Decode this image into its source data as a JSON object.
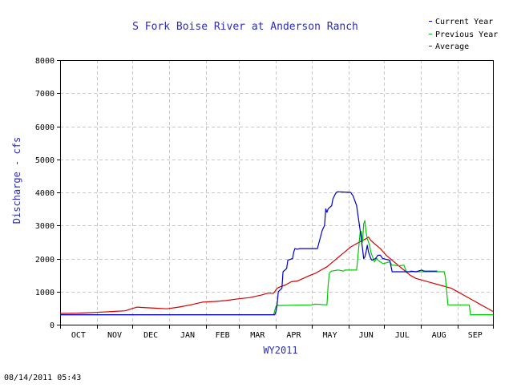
{
  "chart_data": {
    "type": "line",
    "title": "S Fork Boise River at Anderson Ranch",
    "xlabel": "WY2011",
    "ylabel": "Discharge - cfs",
    "ylim": [
      0,
      8000
    ],
    "yticks": [
      0,
      1000,
      2000,
      3000,
      4000,
      5000,
      6000,
      7000,
      8000
    ],
    "xlim": [
      0,
      365
    ],
    "month_labels": [
      "OCT",
      "NOV",
      "DEC",
      "JAN",
      "FEB",
      "MAR",
      "APR",
      "MAY",
      "JUN",
      "JUL",
      "AUG",
      "SEP"
    ],
    "grid": true,
    "legend_position": "top-right",
    "series": [
      {
        "name": "Current Year",
        "color": "#0000c8",
        "x": [
          0,
          181,
          182,
          183,
          184,
          187,
          188,
          191,
          192,
          196,
          197,
          198,
          200,
          202,
          205,
          207,
          217,
          221,
          223,
          224,
          225,
          226,
          229,
          230,
          232,
          233,
          234,
          240,
          245,
          246,
          247,
          250,
          254,
          256,
          257,
          258,
          259,
          260,
          262,
          263,
          266,
          268,
          270,
          272,
          278,
          280,
          295,
          296,
          300,
          305,
          307,
          318
        ],
        "values": [
          300,
          300,
          400,
          600,
          1000,
          1100,
          1600,
          1700,
          1950,
          2000,
          2200,
          2300,
          2280,
          2300,
          2300,
          2300,
          2300,
          2850,
          3000,
          3500,
          3400,
          3500,
          3600,
          3800,
          3950,
          4000,
          4020,
          4010,
          4000,
          3950,
          3900,
          3600,
          2600,
          2000,
          2050,
          2200,
          2400,
          2200,
          2000,
          1950,
          2000,
          2100,
          2100,
          2000,
          1950,
          1600,
          1600,
          1620,
          1600,
          1650,
          1620,
          1620
        ]
      },
      {
        "name": "Previous Year",
        "color": "#00c800",
        "x": [
          0,
          180,
          182,
          183,
          184,
          212,
          215,
          225,
          226,
          227,
          228,
          229,
          234,
          235,
          239,
          240,
          250,
          251,
          253,
          254,
          255,
          256,
          257,
          258,
          259,
          260,
          261,
          262,
          263,
          264,
          265,
          266,
          267,
          268,
          270,
          272,
          273,
          278,
          280,
          282,
          285,
          290,
          292,
          300,
          312,
          324,
          325,
          326,
          327,
          340,
          345,
          346,
          355,
          365
        ],
        "values": [
          300,
          300,
          550,
          600,
          580,
          600,
          620,
          600,
          1200,
          1550,
          1600,
          1620,
          1650,
          1650,
          1620,
          1650,
          1650,
          2000,
          2800,
          2820,
          2500,
          3050,
          3150,
          2800,
          2600,
          2500,
          2400,
          2200,
          2100,
          2000,
          1900,
          1950,
          2000,
          1950,
          1900,
          1850,
          1850,
          1900,
          1800,
          1800,
          1780,
          1800,
          1600,
          1600,
          1600,
          1600,
          1400,
          1000,
          600,
          600,
          600,
          300,
          300,
          300
        ]
      },
      {
        "name": "Average",
        "color": "#d20000",
        "x": [
          0,
          15,
          30,
          45,
          55,
          60,
          65,
          70,
          80,
          90,
          100,
          110,
          120,
          130,
          140,
          150,
          160,
          170,
          175,
          180,
          183,
          186,
          190,
          195,
          200,
          205,
          210,
          215,
          220,
          225,
          230,
          235,
          240,
          245,
          250,
          255,
          258,
          260,
          262,
          265,
          270,
          275,
          280,
          285,
          290,
          295,
          300,
          305,
          310,
          315,
          320,
          325,
          330,
          335,
          340,
          345,
          350,
          355,
          360,
          365
        ],
        "values": [
          340,
          350,
          370,
          400,
          420,
          480,
          530,
          520,
          500,
          480,
          530,
          600,
          680,
          700,
          730,
          780,
          820,
          900,
          950,
          950,
          1100,
          1150,
          1200,
          1300,
          1320,
          1400,
          1480,
          1550,
          1650,
          1750,
          1900,
          2050,
          2200,
          2350,
          2450,
          2550,
          2600,
          2650,
          2550,
          2450,
          2300,
          2100,
          1950,
          1800,
          1650,
          1500,
          1400,
          1350,
          1300,
          1250,
          1200,
          1150,
          1100,
          1000,
          900,
          800,
          700,
          600,
          500,
          400
        ]
      }
    ]
  },
  "timestamp": "08/14/2011 05:43"
}
